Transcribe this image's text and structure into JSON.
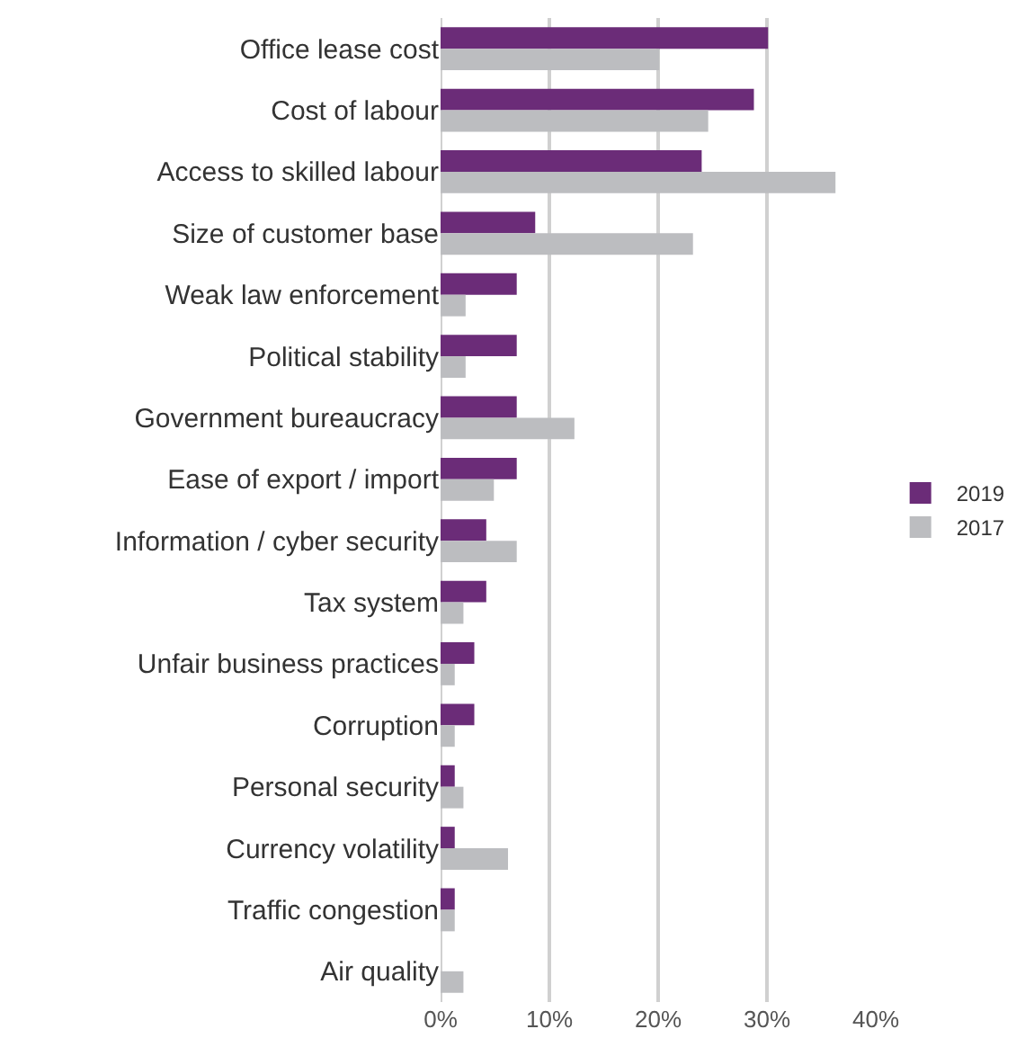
{
  "chart_data": {
    "type": "bar",
    "orientation": "horizontal",
    "categories": [
      "Office lease cost",
      "Cost of labour",
      "Access to skilled labour",
      "Size of customer base",
      "Weak law enforcement",
      "Political stability",
      "Government bureaucracy",
      "Ease of export / import",
      "Information / cyber security",
      "Tax system",
      "Unfair business practices",
      "Corruption",
      "Personal security",
      "Currency volatility",
      "Traffic congestion",
      "Air quality"
    ],
    "series": [
      {
        "name": "2019",
        "color": "#6b2c78",
        "values": [
          30.1,
          28.8,
          24.0,
          8.7,
          7.0,
          7.0,
          7.0,
          7.0,
          4.2,
          4.2,
          3.1,
          3.1,
          1.3,
          1.3,
          1.3,
          null
        ]
      },
      {
        "name": "2017",
        "color": "#bcbdc0",
        "values": [
          20.1,
          24.6,
          36.3,
          23.2,
          2.3,
          2.3,
          12.3,
          4.9,
          7.0,
          2.1,
          1.3,
          1.3,
          2.1,
          6.2,
          1.3,
          2.1
        ]
      }
    ],
    "xlim": [
      0,
      40
    ],
    "xticks": [
      {
        "value": 0,
        "label": "0%"
      },
      {
        "value": 10,
        "label": "10%"
      },
      {
        "value": 20,
        "label": "20%"
      },
      {
        "value": 30,
        "label": "30%"
      },
      {
        "value": 40,
        "label": "40%"
      }
    ],
    "grid": "x",
    "legend": "right"
  }
}
